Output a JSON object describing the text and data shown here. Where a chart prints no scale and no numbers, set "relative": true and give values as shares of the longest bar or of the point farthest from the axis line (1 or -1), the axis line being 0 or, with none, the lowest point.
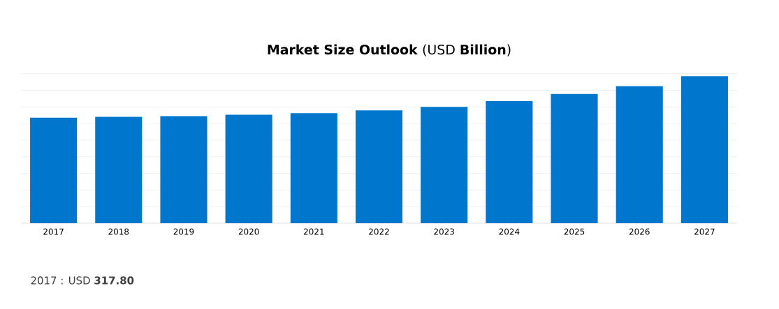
{
  "chart_data": {
    "type": "bar",
    "title": "**Market Size Outlook** (USD **Billion**)",
    "categories": [
      "2017",
      "2018",
      "2019",
      "2020",
      "2021",
      "2022",
      "2023",
      "2024",
      "2025",
      "2026",
      "2027"
    ],
    "values": [
      0.718,
      0.723,
      0.728,
      0.738,
      0.748,
      0.767,
      0.791,
      0.83,
      0.879,
      0.932,
      1
    ],
    "color": "#0077cc",
    "relative": true,
    "grid": "y",
    "annotations": [
      "2017 : USD **317.80**"
    ]
  }
}
